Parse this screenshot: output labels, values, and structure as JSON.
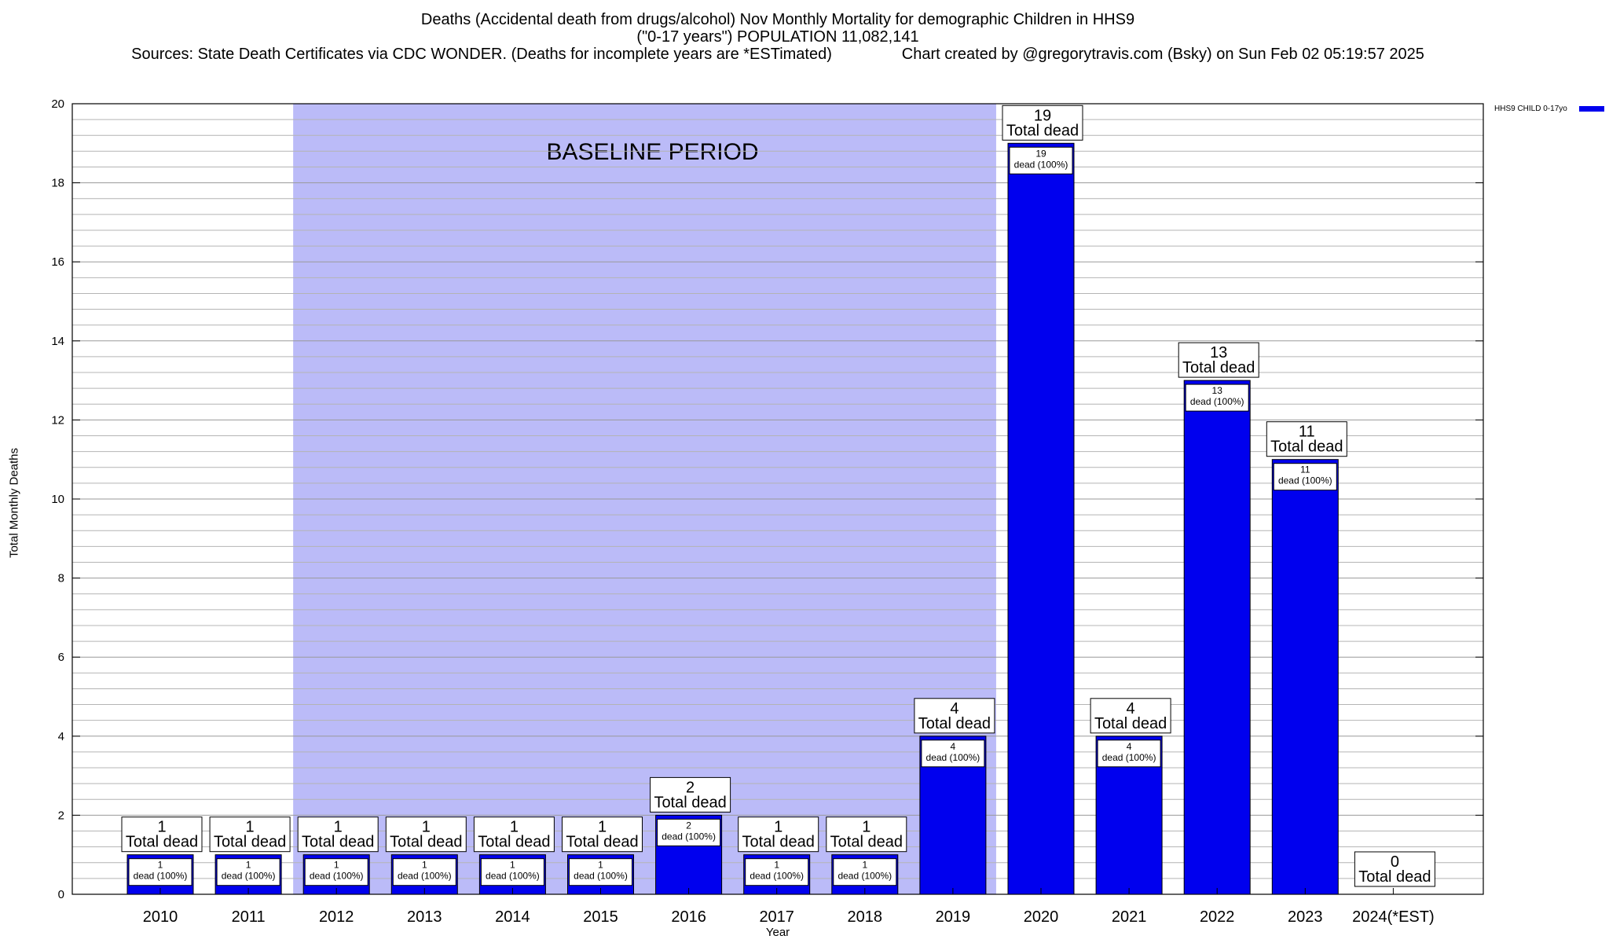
{
  "titles": {
    "line1": "Deaths (Accidental death from drugs/alcohol) Nov Monthly Mortality for demographic Children in HHS9",
    "line2": "(\"0-17 years\") POPULATION 11,082,141",
    "line3": "Sources: State Death Certificates via CDC WONDER. (Deaths for incomplete years are *ESTimated)                Chart created by @gregorytravis.com (Bsky) on Sun Feb 02 05:19:57 2025"
  },
  "chart_data": {
    "type": "bar",
    "title": "Deaths (Accidental death from drugs/alcohol) Nov Monthly Mortality for demographic Children in HHS9",
    "xlabel": "Year",
    "ylabel": "Total Monthly Deaths",
    "ylim": [
      0,
      20
    ],
    "yticks": [
      0,
      2,
      4,
      6,
      8,
      10,
      12,
      14,
      16,
      18,
      20
    ],
    "grid": true,
    "categories": [
      "2010",
      "2011",
      "2012",
      "2013",
      "2014",
      "2015",
      "2016",
      "2017",
      "2018",
      "2019",
      "2020",
      "2021",
      "2022",
      "2023",
      "2024(*EST)"
    ],
    "series": [
      {
        "name": "HHS9 CHILD 0-17yo",
        "color": "#0000ee",
        "values": [
          1,
          1,
          1,
          1,
          1,
          1,
          2,
          1,
          1,
          4,
          19,
          4,
          13,
          11,
          0
        ]
      }
    ],
    "total_label": "Total dead",
    "inner_label_suffix": "dead (100%)",
    "baseline": {
      "label": "BASELINE PERIOD",
      "from": "2012",
      "to": "2019",
      "color": "#bbbbf8"
    },
    "legend": {
      "entries": [
        "HHS9 CHILD 0-17yo"
      ],
      "position": "top-right outside"
    }
  }
}
